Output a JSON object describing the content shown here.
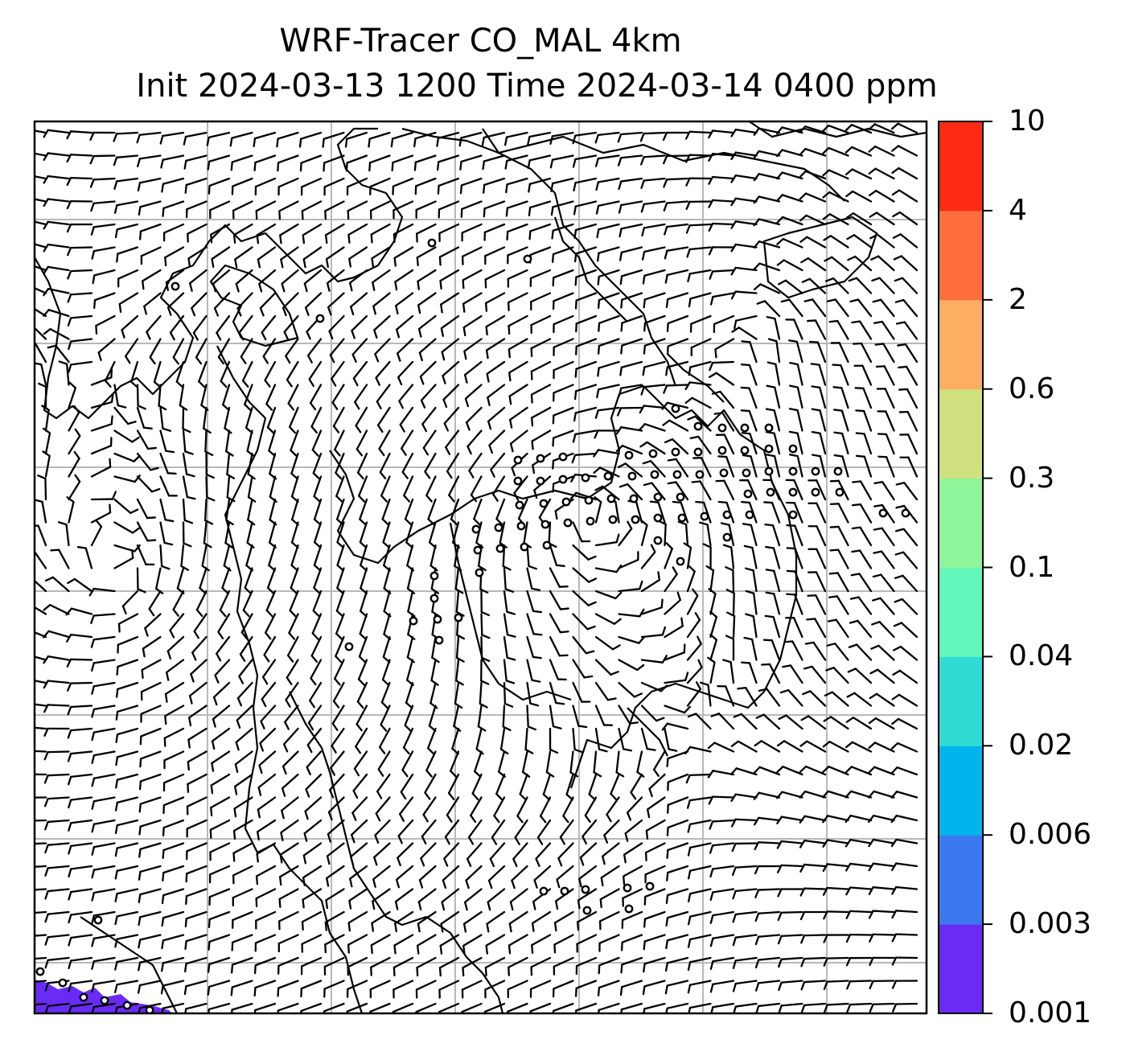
{
  "title": {
    "line1": "WRF-Tracer CO_MAL 4km",
    "line2": "Init 2024-03-13 1200 Time 2024-03-14 0400 ppm"
  },
  "colorbar": {
    "labels": [
      "0.001",
      "0.003",
      "0.006",
      "0.02",
      "0.04",
      "0.1",
      "0.3",
      "0.6",
      "2",
      "4",
      "10"
    ],
    "colors": [
      "#6a2bf5",
      "#3b78f0",
      "#00b4ec",
      "#2fdcd4",
      "#63f7bc",
      "#8ef59a",
      "#cfe07e",
      "#feae62",
      "#fe6e3c",
      "#fe2a14"
    ]
  },
  "map": {
    "gridlines": true,
    "field": "wind barbs",
    "tracer_fill_color": "#6a2bf5"
  }
}
